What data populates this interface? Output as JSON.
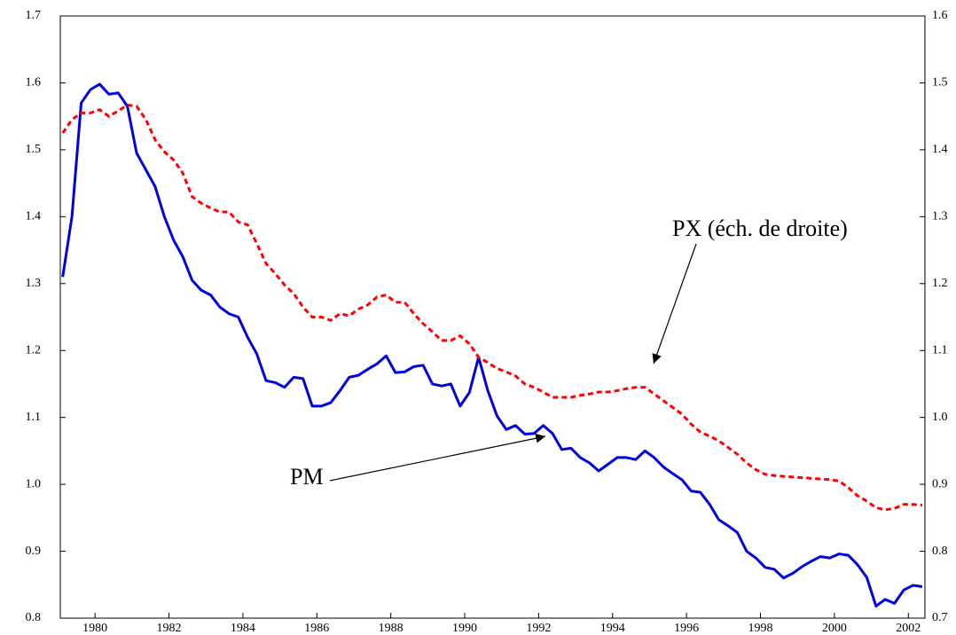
{
  "chart_data": {
    "type": "line",
    "x": [
      1979.125,
      1979.375,
      1979.625,
      1979.875,
      1980.125,
      1980.375,
      1980.625,
      1980.875,
      1981.125,
      1981.375,
      1981.625,
      1981.875,
      1982.125,
      1982.375,
      1982.625,
      1982.875,
      1983.125,
      1983.375,
      1983.625,
      1983.875,
      1984.125,
      1984.375,
      1984.625,
      1984.875,
      1985.125,
      1985.375,
      1985.625,
      1985.875,
      1986.125,
      1986.375,
      1986.625,
      1986.875,
      1987.125,
      1987.375,
      1987.625,
      1987.875,
      1988.125,
      1988.375,
      1988.625,
      1988.875,
      1989.125,
      1989.375,
      1989.625,
      1989.875,
      1990.125,
      1990.375,
      1990.625,
      1990.875,
      1991.125,
      1991.375,
      1991.625,
      1991.875,
      1992.125,
      1992.375,
      1992.625,
      1992.875,
      1993.125,
      1993.375,
      1993.625,
      1993.875,
      1994.125,
      1994.375,
      1994.625,
      1994.875,
      1995.125,
      1995.375,
      1995.625,
      1995.875,
      1996.125,
      1996.375,
      1996.625,
      1996.875,
      1997.125,
      1997.375,
      1997.625,
      1997.875,
      1998.125,
      1998.375,
      1998.625,
      1998.875,
      1999.125,
      1999.375,
      1999.625,
      1999.875,
      2000.125,
      2000.375,
      2000.625,
      2000.875,
      2001.125,
      2001.375,
      2001.625,
      2001.875,
      2002.125,
      2002.375
    ],
    "series": [
      {
        "name": "PM",
        "color": "#0000e0",
        "dash": "solid",
        "axis": "y",
        "values": [
          1.31,
          1.4,
          1.57,
          1.59,
          1.598,
          1.583,
          1.585,
          1.565,
          1.495,
          1.47,
          1.445,
          1.4,
          1.365,
          1.34,
          1.305,
          1.29,
          1.283,
          1.265,
          1.255,
          1.25,
          1.22,
          1.195,
          1.155,
          1.152,
          1.145,
          1.16,
          1.158,
          1.117,
          1.117,
          1.122,
          1.14,
          1.16,
          1.163,
          1.172,
          1.18,
          1.192,
          1.167,
          1.168,
          1.176,
          1.178,
          1.15,
          1.147,
          1.15,
          1.117,
          1.137,
          1.19,
          1.14,
          1.102,
          1.082,
          1.088,
          1.075,
          1.076,
          1.088,
          1.076,
          1.052,
          1.054,
          1.04,
          1.032,
          1.02,
          1.03,
          1.04,
          1.04,
          1.037,
          1.05,
          1.04,
          1.026,
          1.016,
          1.007,
          0.99,
          0.988,
          0.97,
          0.947,
          0.938,
          0.928,
          0.9,
          0.89,
          0.876,
          0.873,
          0.86,
          0.867,
          0.877,
          0.885,
          0.892,
          0.89,
          0.896,
          0.894,
          0.88,
          0.861,
          0.818,
          0.828,
          0.822,
          0.842,
          0.849,
          0.847
        ]
      },
      {
        "name": "PX",
        "color": "#ff0000",
        "dash": "dashed",
        "axis": "y2",
        "values": [
          1.425,
          1.445,
          1.455,
          1.455,
          1.46,
          1.45,
          1.458,
          1.467,
          1.465,
          1.445,
          1.415,
          1.397,
          1.385,
          1.365,
          1.33,
          1.32,
          1.313,
          1.307,
          1.307,
          1.292,
          1.288,
          1.26,
          1.23,
          1.215,
          1.198,
          1.185,
          1.165,
          1.15,
          1.15,
          1.145,
          1.155,
          1.152,
          1.162,
          1.168,
          1.18,
          1.183,
          1.172,
          1.172,
          1.155,
          1.14,
          1.128,
          1.115,
          1.115,
          1.122,
          1.11,
          1.09,
          1.082,
          1.073,
          1.068,
          1.062,
          1.05,
          1.045,
          1.038,
          1.03,
          1.03,
          1.03,
          1.033,
          1.035,
          1.038,
          1.038,
          1.04,
          1.043,
          1.045,
          1.045,
          1.035,
          1.025,
          1.015,
          1.005,
          0.99,
          0.978,
          0.972,
          0.965,
          0.955,
          0.945,
          0.932,
          0.922,
          0.915,
          0.913,
          0.912,
          0.911,
          0.91,
          0.909,
          0.908,
          0.907,
          0.905,
          0.895,
          0.883,
          0.875,
          0.865,
          0.862,
          0.864,
          0.87,
          0.87,
          0.869
        ]
      }
    ],
    "annotations": [
      {
        "text": "PX (éch. de droite)"
      },
      {
        "text": "PM"
      }
    ],
    "xlim": [
      1979.06,
      2002.45
    ],
    "xticks": [
      1980,
      1982,
      1984,
      1986,
      1988,
      1990,
      1992,
      1994,
      1996,
      1998,
      2000,
      2002
    ],
    "ylim": [
      0.8,
      1.7
    ],
    "yticks": [
      0.8,
      0.9,
      {
        "value": 1,
        "label": "1.0"
      },
      1.1,
      1.2,
      1.3,
      1.4,
      1.5,
      1.6,
      1.7
    ],
    "y2lim": [
      0.7,
      1.6
    ],
    "y2ticks": [
      0.7,
      0.8,
      0.9,
      {
        "value": 1,
        "label": "1.0"
      },
      1.1,
      1.2,
      1.3,
      1.4,
      1.5,
      1.6
    ],
    "grid": false
  }
}
